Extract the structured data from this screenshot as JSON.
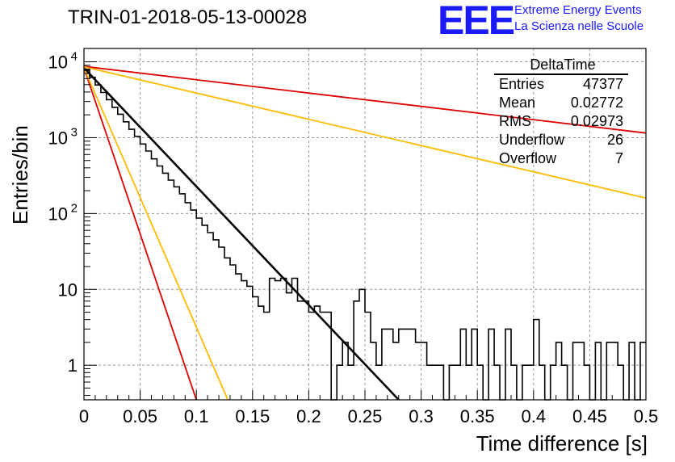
{
  "header": {
    "title": "TRIN-01-2018-05-13-00028",
    "logo_text": "EEE",
    "logo_line1": "Extreme Energy Events",
    "logo_line2": "La Scienza nelle Scuole",
    "logo_color": "#1a1aff"
  },
  "stats_box": {
    "name": "DeltaTime",
    "rows": [
      {
        "label": "Entries",
        "value": "47377"
      },
      {
        "label": "Mean",
        "value": "0.02772"
      },
      {
        "label": "RMS",
        "value": "0.02973"
      },
      {
        "label": "Underflow",
        "value": "26"
      },
      {
        "label": "Overflow",
        "value": "7"
      }
    ]
  },
  "chart_data": {
    "type": "line",
    "title": "TRIN-01-2018-05-13-00028",
    "xlabel": "Time difference [s]",
    "ylabel": "Entries/bin",
    "xlim": [
      0,
      0.5
    ],
    "ylim": [
      0.35,
      15000
    ],
    "y_scale": "log",
    "grid": true,
    "x_ticks": [
      "0",
      "0.05",
      "0.1",
      "0.15",
      "0.2",
      "0.25",
      "0.3",
      "0.35",
      "0.4",
      "0.45",
      "0.5"
    ],
    "y_ticks": [
      {
        "value": 1,
        "label": "1"
      },
      {
        "value": 10,
        "label": "10"
      },
      {
        "value": 100,
        "label": "10",
        "exp": "2"
      },
      {
        "value": 1000,
        "label": "10",
        "exp": "3"
      },
      {
        "value": 10000,
        "label": "10",
        "exp": "4"
      }
    ],
    "histogram": {
      "name": "DeltaTime",
      "color": "#000000",
      "bin_width": 0.005,
      "values": [
        7760,
        6230,
        4950,
        3940,
        3170,
        2510,
        2040,
        1620,
        1290,
        1040,
        824,
        666,
        526,
        423,
        340,
        276,
        225,
        182,
        139,
        111,
        87,
        70,
        56,
        45,
        36,
        26,
        21,
        16,
        13,
        11,
        8,
        6,
        5,
        14,
        13,
        14,
        9,
        14,
        7,
        7,
        5,
        6,
        5,
        5,
        0,
        1,
        2,
        1,
        7,
        10,
        5,
        2,
        1,
        3,
        3,
        2,
        3,
        3,
        3,
        2,
        2,
        1,
        1,
        1,
        0,
        1,
        1,
        3,
        1,
        3,
        1,
        0,
        3,
        1,
        0,
        3,
        1,
        0,
        1,
        1,
        4,
        1,
        0,
        1,
        2,
        1,
        0,
        2,
        2,
        1,
        0,
        2,
        0,
        2,
        2,
        1,
        0,
        2,
        0,
        2
      ]
    },
    "series": [
      {
        "name": "",
        "color": "#000000",
        "x": [
          0,
          0.28
        ],
        "y": [
          8300,
          0.33
        ]
      },
      {
        "name": "",
        "color": "#dd0000",
        "x": [
          0,
          0.5
        ],
        "y": [
          8700,
          1150
        ]
      },
      {
        "name": "",
        "color": "#dd0000",
        "x": [
          0,
          0.1
        ],
        "y": [
          8300,
          0.35
        ]
      },
      {
        "name": "",
        "color": "#ffbb00",
        "x": [
          0,
          0.5
        ],
        "y": [
          8600,
          160
        ]
      },
      {
        "name": "",
        "color": "#ffbb00",
        "x": [
          0,
          0.128
        ],
        "y": [
          8300,
          0.35
        ]
      }
    ]
  }
}
